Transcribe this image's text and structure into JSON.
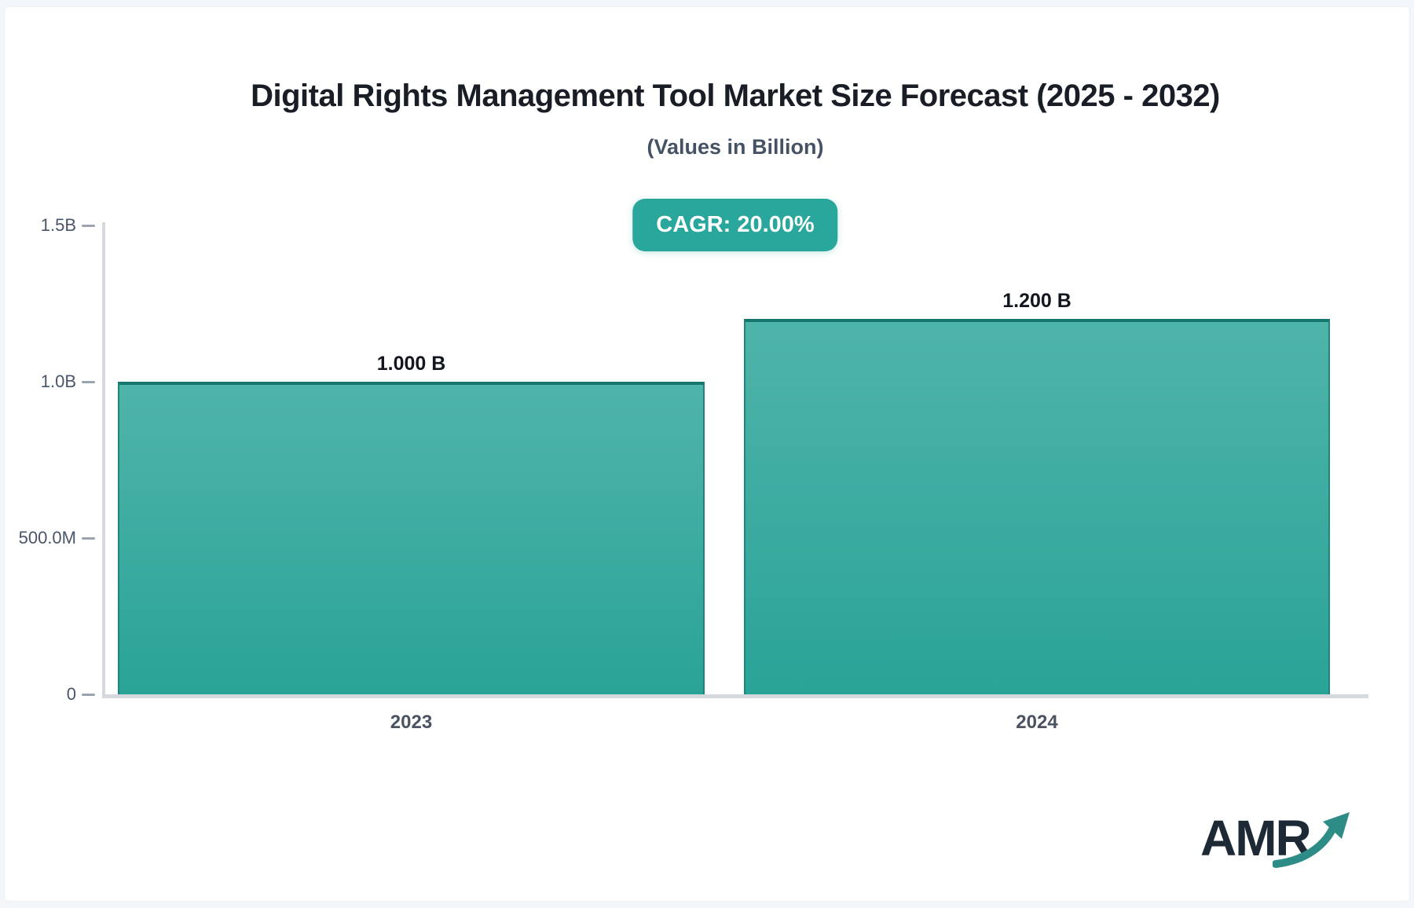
{
  "chart_data": {
    "type": "bar",
    "title": "Digital Rights Management Tool Market Size Forecast (2025 - 2032)",
    "subtitle": "(Values in Billion)",
    "cagr_label": "CAGR: 20.00%",
    "cagr_value_percent": 20.0,
    "categories": [
      "2023",
      "2024"
    ],
    "values": [
      1.0,
      1.2
    ],
    "value_labels": [
      "1.000 B",
      "1.200 B"
    ],
    "value_unit": "B",
    "ylim": [
      0,
      1.5
    ],
    "yticks": [
      {
        "label": "1.5B",
        "value": 1.5
      },
      {
        "label": "1.0B",
        "value": 1.0
      },
      {
        "label": "500.0M",
        "value": 0.5
      },
      {
        "label": "0",
        "value": 0
      }
    ],
    "grid": false,
    "legend": false
  },
  "colors": {
    "accent_teal": "#2AA79C",
    "bar_gradient_top": "#4FB4AA",
    "bar_gradient_bottom": "#2AA397",
    "bar_border": "#15776E",
    "axis_line": "#D5D8DD",
    "tick_text": "#4A5568",
    "title_text": "#191E26",
    "logo_navy": "#1D2A35",
    "logo_arrow_teal": "#2E8C87"
  },
  "branding": {
    "logo_text": "AMR"
  }
}
